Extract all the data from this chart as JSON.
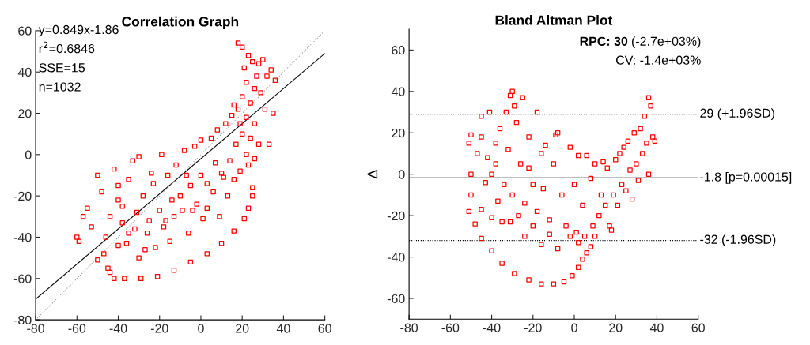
{
  "chart_data": [
    {
      "type": "scatter",
      "title": "Correlation Graph",
      "annotations": [
        "y=0.849x-1.86",
        "r$^{2}$=0.6846",
        "SSE=15",
        "n=1032"
      ],
      "xlim": [
        -80,
        60
      ],
      "ylim": [
        -80,
        60
      ],
      "xticks": [
        -80,
        -60,
        -40,
        -20,
        0,
        20,
        40,
        60
      ],
      "yticks": [
        -80,
        -60,
        -40,
        -20,
        0,
        20,
        40,
        60
      ],
      "grid": false,
      "series": [
        {
          "color": "#ff0000",
          "marker": "square",
          "x": [
            -37,
            -29,
            -21,
            -13,
            -5,
            3,
            10,
            16,
            21,
            23,
            25,
            25,
            -60,
            -59,
            -57,
            -55,
            -53,
            -50,
            -50,
            -48,
            -47,
            -45,
            -44,
            -42,
            -42,
            -40,
            -40,
            -38,
            -36,
            -35,
            -33,
            -32,
            -30,
            -30,
            -28,
            -27,
            -25,
            -24,
            -22,
            -20,
            -19,
            -18,
            -16,
            -15,
            -13,
            -12,
            -10,
            -9,
            -8,
            -6,
            -5,
            -3,
            -2,
            0,
            0,
            1,
            3,
            5,
            6,
            7,
            8,
            9,
            10,
            12,
            13,
            14,
            15,
            16,
            17,
            18,
            19,
            20,
            20,
            21,
            22,
            22,
            23,
            24,
            25,
            26,
            27,
            28,
            29,
            30,
            31,
            32,
            33,
            34,
            35,
            36,
            18,
            20,
            23,
            26,
            28,
            24,
            26,
            19,
            16,
            22,
            -44,
            -46,
            -38,
            -35,
            -26,
            -40,
            -31,
            -23,
            -14,
            -7,
            -4,
            3,
            11,
            -17
          ],
          "values": [
            -60,
            -60,
            -59,
            -56,
            -52,
            -48,
            -43,
            -37,
            -31,
            -26,
            -20,
            -16,
            -40,
            -42,
            -30,
            -26,
            -35,
            -10,
            -51,
            -18,
            -48,
            -55,
            -57,
            -60,
            -7,
            -44,
            -15,
            -25,
            -43,
            -12,
            -3,
            -36,
            -1,
            -50,
            -20,
            -46,
            -32,
            -9,
            -45,
            -27,
            0,
            -35,
            -10,
            -42,
            -30,
            -5,
            -20,
            -27,
            2,
            -38,
            -15,
            4,
            -24,
            -10,
            7,
            -31,
            -26,
            8,
            -18,
            -4,
            12,
            -30,
            -9,
            15,
            -20,
            -3,
            19,
            -12,
            5,
            22,
            -8,
            28,
            10,
            42,
            0,
            35,
            -5,
            25,
            45,
            15,
            38,
            5,
            30,
            46,
            22,
            38,
            5,
            41,
            20,
            36,
            54,
            52,
            48,
            32,
            44,
            8,
            -2,
            15,
            24,
            18,
            -30,
            -40,
            -33,
            -38,
            -38,
            -22,
            -28,
            -14,
            -22,
            -10,
            -27,
            -14,
            -11,
            -32
          ]
        },
        {
          "type": "line",
          "color": "#000000",
          "line_style": "solid",
          "x": [
            -80,
            60
          ],
          "values": [
            -70,
            49
          ]
        },
        {
          "type": "line",
          "color": "#999999",
          "line_style": "dotted",
          "x": [
            -80,
            60
          ],
          "values": [
            -80,
            60
          ]
        }
      ]
    },
    {
      "type": "scatter",
      "title": "Bland Altman Plot",
      "ylabel": "Δ",
      "annotations": [
        "RPC: 30",
        "(-2.7e+03%)",
        "CV: -1.4e+03%"
      ],
      "xlim": [
        -80,
        60
      ],
      "ylim": [
        -70,
        70
      ],
      "xticks": [
        -80,
        -60,
        -40,
        -20,
        0,
        20,
        40,
        60
      ],
      "yticks": [
        -60,
        -40,
        -20,
        0,
        20,
        40,
        60
      ],
      "grid": false,
      "ref_lines": [
        {
          "axis": "y",
          "value": 29,
          "label": "29 (+1.96SD)",
          "color": "#000000",
          "line_style": "dotted"
        },
        {
          "axis": "y",
          "value": -1.8,
          "label": "-1.8 [p=0.00015]",
          "color": "#000000",
          "line_style": "solid"
        },
        {
          "axis": "y",
          "value": -32,
          "label": "-32 (-1.96SD)",
          "color": "#000000",
          "line_style": "dotted"
        }
      ],
      "series": [
        {
          "color": "#ff0000",
          "marker": "square",
          "x": [
            -45,
            -40,
            -35,
            -29,
            -22,
            -16,
            -10,
            -5,
            -1,
            2,
            4,
            6,
            8,
            -30,
            -31,
            -25,
            -29,
            -33,
            -41,
            -45,
            -18,
            -51,
            -50,
            -47,
            -45,
            -42,
            -40,
            -38,
            -36,
            -34,
            -32,
            -30,
            -28,
            -26,
            -24,
            -22,
            -20,
            -18,
            -16,
            -14,
            -12,
            -10,
            -9,
            -8,
            -6,
            -4,
            -2,
            0,
            1,
            2,
            4,
            5,
            6,
            8,
            9,
            10,
            12,
            13,
            14,
            15,
            16,
            17,
            18,
            19,
            20,
            21,
            22,
            23,
            24,
            25,
            26,
            27,
            28,
            29,
            30,
            31,
            32,
            33,
            34,
            35,
            36,
            37,
            38,
            39,
            36,
            -51,
            -50,
            -50,
            -48,
            -45,
            -43,
            -40,
            -37,
            -35,
            -31,
            -27,
            -24,
            -20,
            -16,
            -12,
            -8,
            -2,
            2,
            -15,
            -22,
            -38,
            10
          ],
          "values": [
            -31,
            -37,
            -43,
            -48,
            -51,
            -53,
            -53,
            -52,
            -49,
            -45,
            -41,
            -38,
            -35,
            40,
            38,
            37,
            33,
            30,
            30,
            28,
            30,
            15,
            19,
            10,
            18,
            8,
            0,
            15,
            22,
            -5,
            12,
            -10,
            25,
            5,
            -14,
            18,
            -5,
            -18,
            10,
            14,
            -22,
            5,
            19,
            20,
            -10,
            -25,
            13,
            -5,
            -28,
            9,
            -15,
            -30,
            9,
            -2,
            -25,
            5,
            -20,
            -10,
            6,
            -15,
            3,
            -25,
            -27,
            -10,
            7,
            -15,
            10,
            -5,
            13,
            -8,
            16,
            2,
            -12,
            20,
            5,
            -3,
            22,
            10,
            28,
            15,
            37,
            33,
            18,
            16,
            0,
            -18,
            -10,
            0,
            -24,
            -17,
            -4,
            -21,
            -13,
            -23,
            -23,
            -20,
            -30,
            -25,
            -34,
            -29,
            -36,
            -30,
            -33,
            -7,
            3,
            5,
            -30
          ]
        }
      ]
    }
  ]
}
